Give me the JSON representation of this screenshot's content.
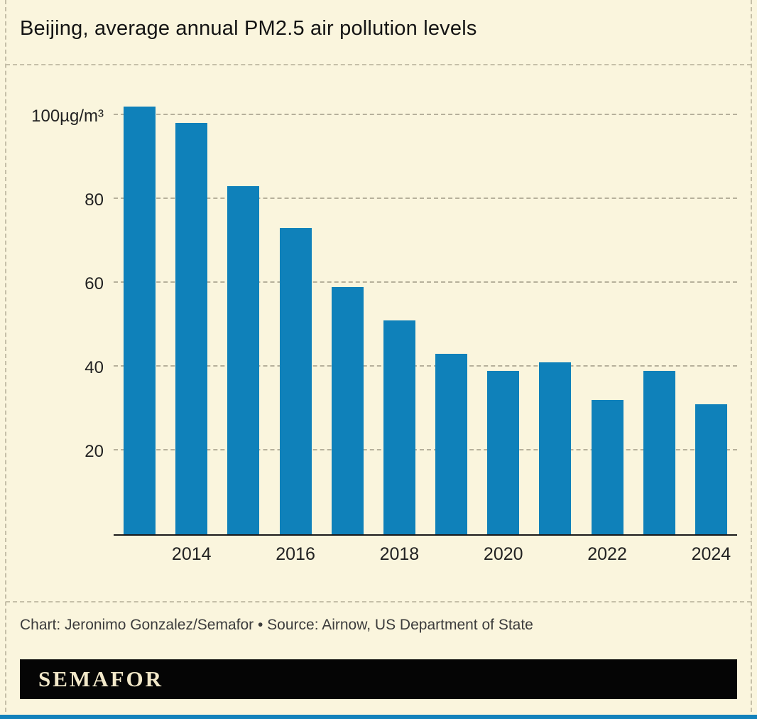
{
  "page": {
    "title": "Beijing, average annual PM2.5 air pollution levels",
    "credit": "Chart: Jeronimo Gonzalez/Semafor • Source: Airnow, US Department of State",
    "logo": "SEMAFOR"
  },
  "colors": {
    "background": "#faf5dd",
    "bar": "#0f81ba",
    "bottom_strip": "#1281bb",
    "logo_bar": "#050505",
    "logo_text": "#f2e8c9"
  },
  "chart_data": {
    "type": "bar",
    "title": "Beijing, average annual PM2.5 air pollution levels",
    "categories": [
      2013,
      2014,
      2015,
      2016,
      2017,
      2018,
      2019,
      2020,
      2021,
      2022,
      2023,
      2024
    ],
    "values": [
      102,
      98,
      83,
      73,
      59,
      51,
      43,
      39,
      41,
      32,
      39,
      31
    ],
    "x_tick_labels": [
      "",
      "2014",
      "",
      "2016",
      "",
      "2018",
      "",
      "2020",
      "",
      "2022",
      "",
      "2024"
    ],
    "y_ticks": [
      20,
      40,
      60,
      80,
      100
    ],
    "y_tick_labels": [
      "20",
      "40",
      "60",
      "80",
      "100µg/m³"
    ],
    "ylabel": "µg/m³",
    "ylim": [
      0,
      105
    ],
    "bar_color": "#0f81ba",
    "grid": "dashed horizontal",
    "legend": "none"
  }
}
